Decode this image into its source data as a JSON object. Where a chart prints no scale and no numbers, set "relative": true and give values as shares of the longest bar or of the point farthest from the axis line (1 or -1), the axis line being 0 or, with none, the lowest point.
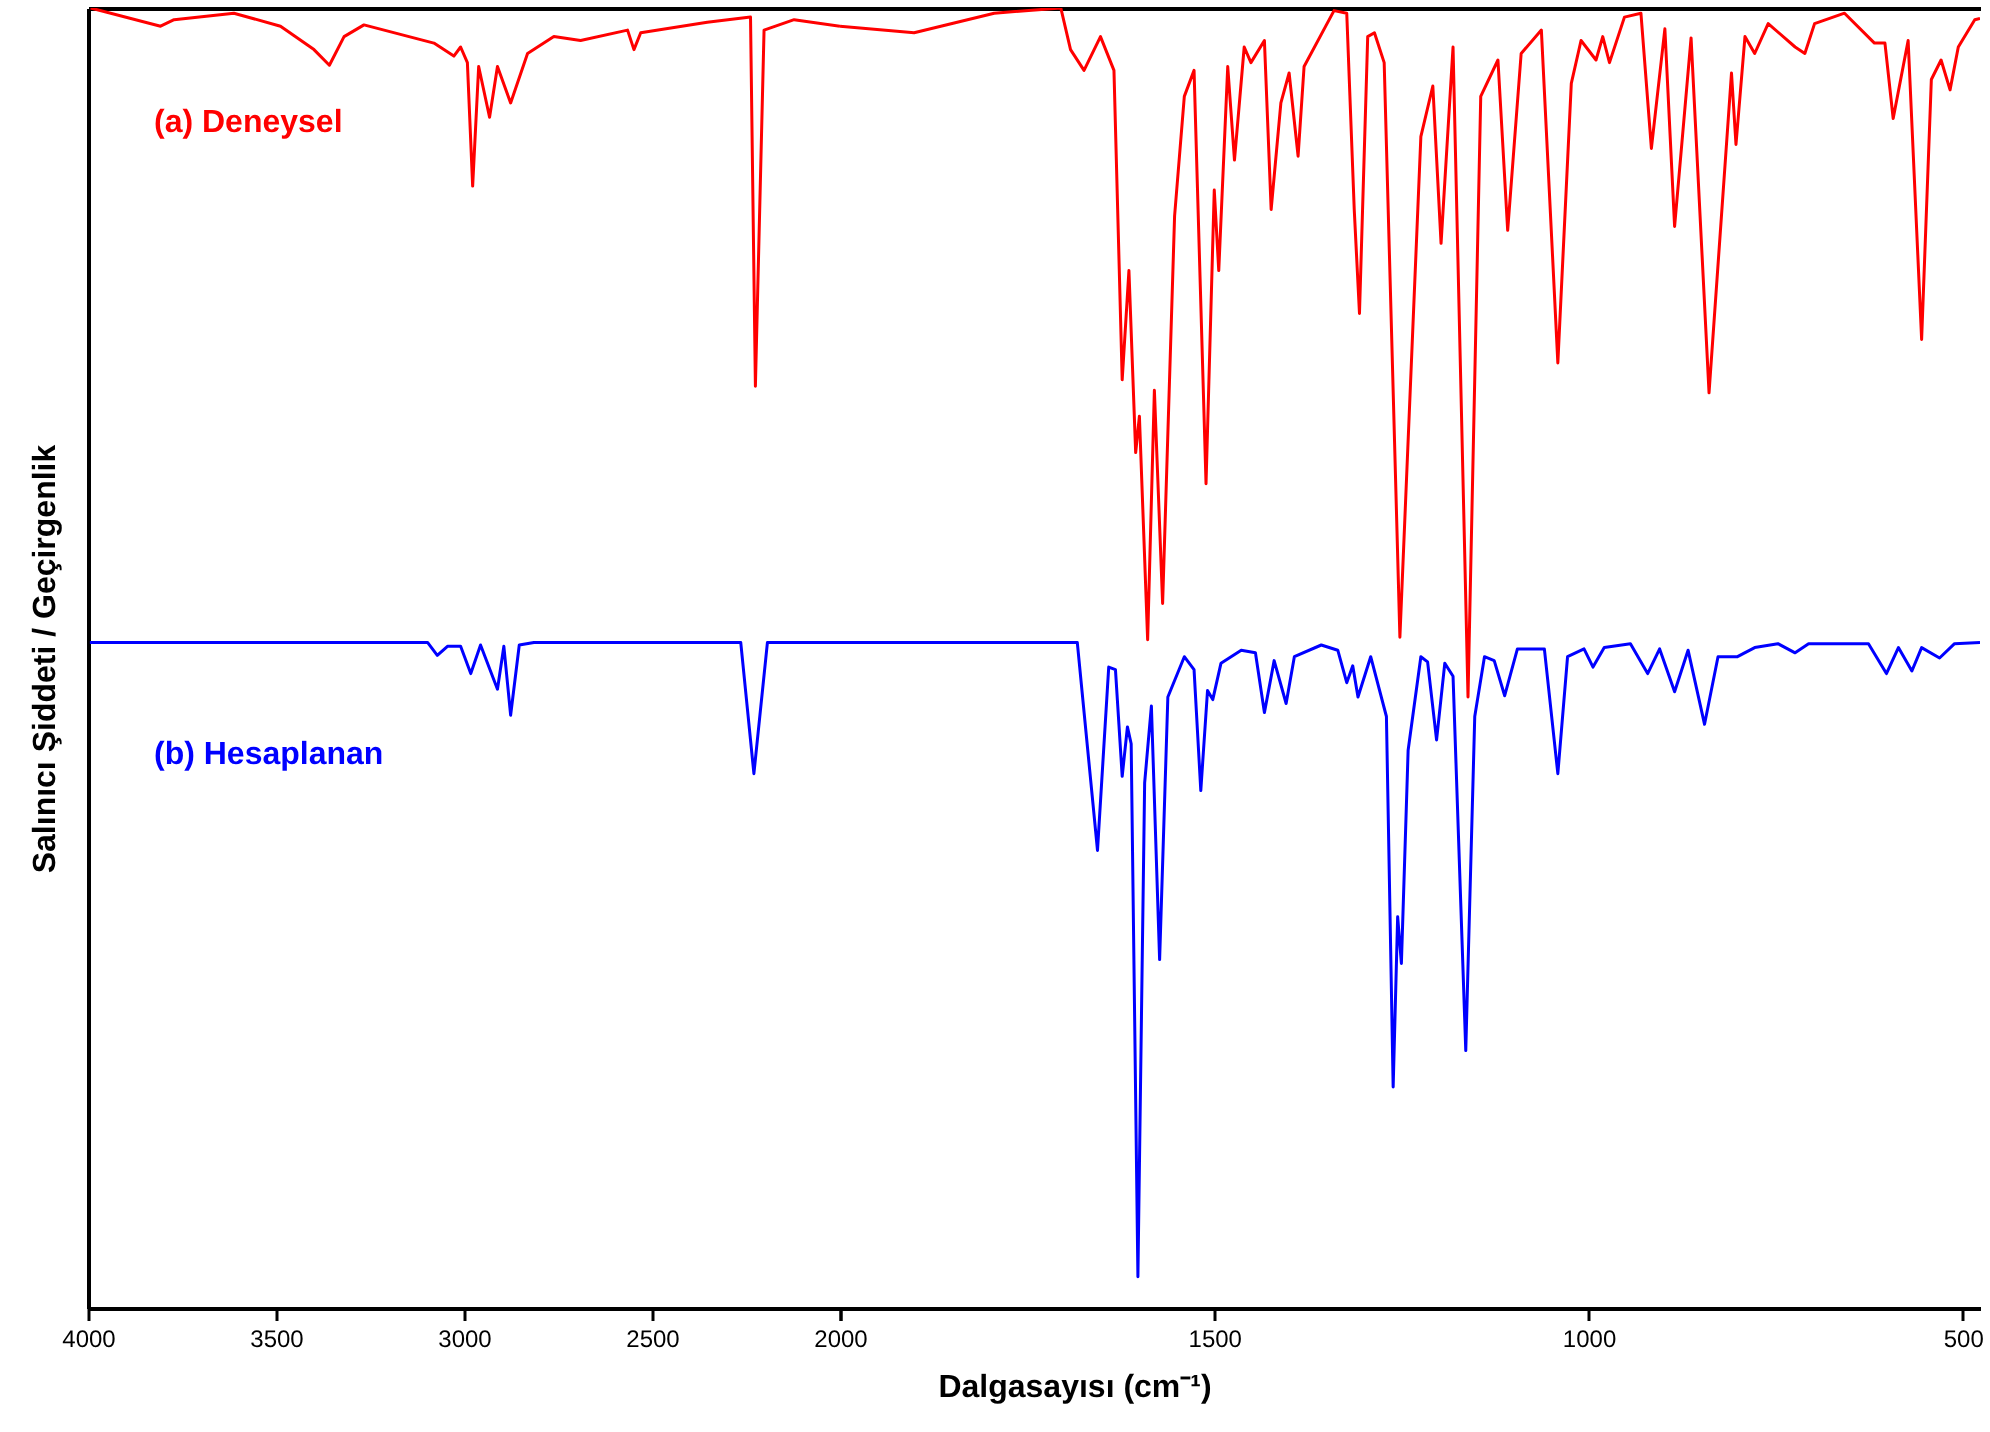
{
  "chart_data": [
    {
      "type": "line",
      "relative": true,
      "ylabel": "Salınıcı Şiddeti / Geçirgenlik",
      "xlim": [
        4000,
        2000
      ],
      "xticks": [
        4000,
        3500,
        3000,
        2500,
        {
          "value": 2000,
          "label": null
        }
      ],
      "series": [
        {
          "name": "(a) Deneysel",
          "color": "#ff0000",
          "x": [
            3993,
            3807,
            3771,
            3612,
            3488,
            3399,
            3358,
            3319,
            3266,
            3080,
            3027,
            3009,
            2991,
            2977,
            2961,
            2932,
            2911,
            2876,
            2831,
            2761,
            2690,
            2565,
            2548,
            2530,
            2353,
            2238,
            2225,
            2202,
            2122,
            2000
          ],
          "values": [
            1,
            0.986,
            0.991,
            0.996,
            0.986,
            0.968,
            0.956,
            0.978,
            0.987,
            0.973,
            0.963,
            0.97,
            0.958,
            0.863,
            0.955,
            0.916,
            0.955,
            0.927,
            0.965,
            0.978,
            0.975,
            0.983,
            0.968,
            0.981,
            0.989,
            0.993,
            0.709,
            0.983,
            0.991,
            0.986
          ]
        },
        {
          "name": "(b) Hesaplanan",
          "color": "#0000ff",
          "x": [
            3995,
            3097,
            3071,
            3044,
            3009,
            2982,
            2956,
            2911,
            2894,
            2876,
            2853,
            2814,
            2264,
            2229,
            2193,
            2000
          ],
          "values": [
            0.512,
            0.512,
            0.502,
            0.509,
            0.509,
            0.488,
            0.51,
            0.476,
            0.509,
            0.456,
            0.51,
            0.512,
            0.512,
            0.411,
            0.512,
            0.512
          ]
        }
      ]
    },
    {
      "type": "line",
      "relative": true,
      "xlabel": "Dalgasayısı (cm⁻¹)",
      "xlim": [
        2000,
        477
      ],
      "xticks": [
        2000,
        1500,
        1000,
        500
      ],
      "series": [
        {
          "color": "#ff0000",
          "x": [
            2000,
            1901,
            1794,
            1705,
            1692,
            1674,
            1652,
            1634,
            1623,
            1614,
            1605,
            1600,
            1589,
            1580,
            1569,
            1553,
            1540,
            1527,
            1511,
            1500,
            1494,
            1482,
            1473,
            1460,
            1451,
            1433,
            1424,
            1411,
            1400,
            1388,
            1380,
            1340,
            1323,
            1313,
            1306,
            1295,
            1286,
            1273,
            1252,
            1224,
            1208,
            1197,
            1181,
            1161,
            1144,
            1121,
            1108,
            1090,
            1063,
            1041,
            1023,
            1010,
            990,
            981,
            972,
            952,
            930,
            916,
            898,
            885,
            863,
            839,
            809,
            803,
            791,
            778,
            760,
            724,
            711,
            698,
            658,
            618,
            604,
            593,
            573,
            555,
            542,
            529,
            517,
            506,
            484,
            477
          ],
          "values": [
            0.986,
            0.981,
            0.996,
            1,
            0.968,
            0.952,
            0.978,
            0.952,
            0.714,
            0.798,
            0.658,
            0.686,
            0.514,
            0.706,
            0.542,
            0.84,
            0.932,
            0.952,
            0.634,
            0.86,
            0.798,
            0.955,
            0.883,
            0.97,
            0.958,
            0.975,
            0.845,
            0.927,
            0.95,
            0.886,
            0.955,
            0.998,
            0.996,
            0.845,
            0.765,
            0.978,
            0.981,
            0.958,
            0.516,
            0.901,
            0.94,
            0.819,
            0.97,
            0.47,
            0.932,
            0.96,
            0.829,
            0.965,
            0.983,
            0.727,
            0.942,
            0.975,
            0.96,
            0.978,
            0.958,
            0.993,
            0.996,
            0.892,
            0.984,
            0.832,
            0.977,
            0.704,
            0.95,
            0.895,
            0.978,
            0.965,
            0.988,
            0.97,
            0.965,
            0.988,
            0.996,
            0.973,
            0.973,
            0.915,
            0.975,
            0.745,
            0.945,
            0.96,
            0.937,
            0.97,
            0.991,
            0.992
          ]
        },
        {
          "color": "#0000ff",
          "x": [
            2000,
            1683,
            1656,
            1641,
            1632,
            1623,
            1616,
            1611,
            1602,
            1593,
            1584,
            1573,
            1562,
            1540,
            1527,
            1518,
            1509,
            1502,
            1491,
            1464,
            1445,
            1433,
            1420,
            1404,
            1393,
            1357,
            1335,
            1323,
            1315,
            1308,
            1291,
            1270,
            1261,
            1255,
            1250,
            1241,
            1224,
            1215,
            1203,
            1192,
            1181,
            1164,
            1152,
            1139,
            1126,
            1112,
            1095,
            1059,
            1041,
            1028,
            1006,
            994,
            979,
            944,
            921,
            905,
            885,
            867,
            845,
            827,
            801,
            778,
            747,
            724,
            706,
            626,
            602,
            586,
            568,
            555,
            531,
            511,
            477
          ],
          "values": [
            0.512,
            0.512,
            0.352,
            0.493,
            0.491,
            0.409,
            0.447,
            0.434,
            0.024,
            0.404,
            0.463,
            0.268,
            0.47,
            0.501,
            0.491,
            0.398,
            0.475,
            0.468,
            0.496,
            0.506,
            0.504,
            0.458,
            0.498,
            0.465,
            0.501,
            0.51,
            0.506,
            0.481,
            0.494,
            0.47,
            0.501,
            0.455,
            0.17,
            0.301,
            0.265,
            0.429,
            0.501,
            0.497,
            0.437,
            0.496,
            0.486,
            0.198,
            0.455,
            0.501,
            0.498,
            0.471,
            0.507,
            0.507,
            0.411,
            0.501,
            0.507,
            0.493,
            0.508,
            0.511,
            0.488,
            0.507,
            0.474,
            0.506,
            0.449,
            0.501,
            0.501,
            0.508,
            0.511,
            0.504,
            0.511,
            0.511,
            0.488,
            0.508,
            0.49,
            0.508,
            0.5,
            0.511,
            0.512
          ]
        }
      ]
    }
  ]
}
